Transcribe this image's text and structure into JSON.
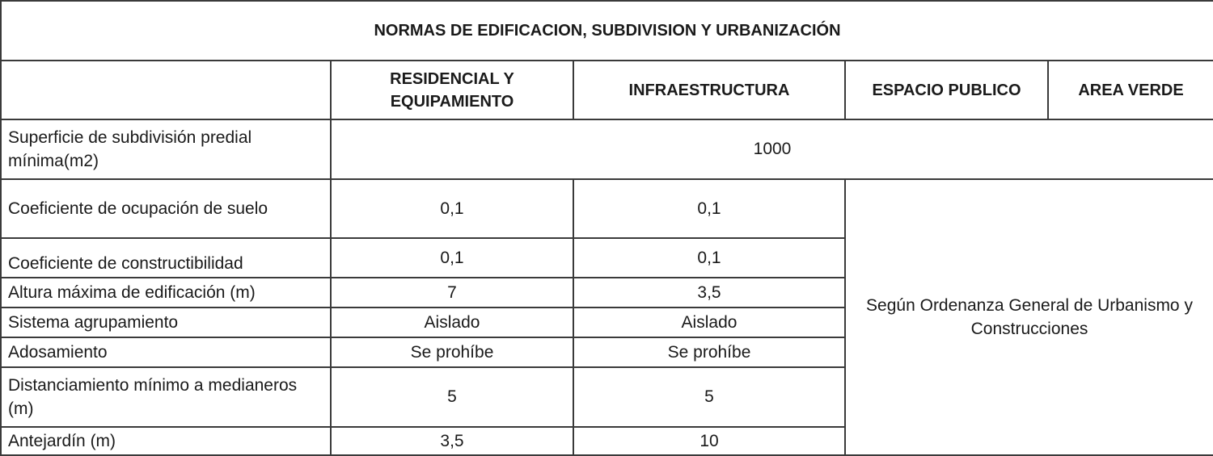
{
  "title": "NORMAS DE EDIFICACION, SUBDIVISION Y URBANIZACIÓN",
  "columns": [
    "",
    "RESIDENCIAL Y EQUIPAMIENTO",
    "INFRAESTRUCTURA",
    "ESPACIO PUBLICO",
    "AREA VERDE"
  ],
  "rows": [
    {
      "label": "Superficie de subdivisión predial mínima(m2)",
      "merged_value": "1000"
    },
    {
      "label": "Coeficiente de ocupación de suelo",
      "residencial": "0,1",
      "infraestructura": "0,1"
    },
    {
      "label": "Coeficiente de constructibilidad",
      "residencial": "0,1",
      "infraestructura": "0,1"
    },
    {
      "label": "Altura máxima de edificación (m)",
      "residencial": "7",
      "infraestructura": "3,5"
    },
    {
      "label": "Sistema agrupamiento",
      "residencial": "Aislado",
      "infraestructura": "Aislado"
    },
    {
      "label": "Adosamiento",
      "residencial": "Se prohíbe",
      "infraestructura": "Se prohíbe"
    },
    {
      "label": "Distanciamiento mínimo a medianeros (m)",
      "residencial": "5",
      "infraestructura": "5"
    },
    {
      "label": "Antejardín (m)",
      "residencial": "3,5",
      "infraestructura": "10"
    }
  ],
  "espacio_area_note": "Según Ordenanza General de Urbanismo y Construcciones"
}
